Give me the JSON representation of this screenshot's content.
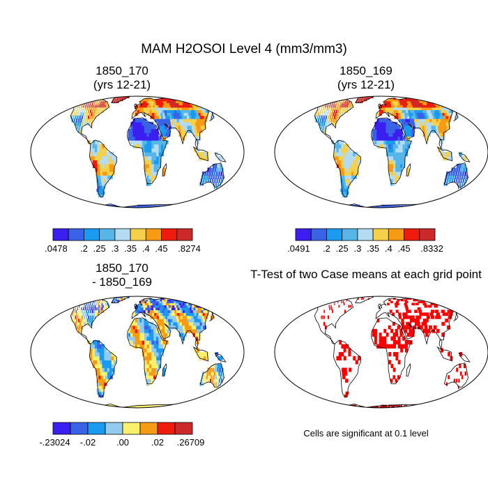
{
  "main_title": "MAM H2OSOI Level 4 (mm3/mm3)",
  "panels": [
    {
      "title_line1": "1850_170",
      "title_line2": "(yrs 12-21)",
      "colorbar": {
        "colors": [
          "#3b1ef0",
          "#3a62e6",
          "#1a9bef",
          "#57b6e8",
          "#b3dbf2",
          "#f5d04b",
          "#f79b14",
          "#ef1b0c",
          "#cc2a2a"
        ],
        "labels": [
          ".0478",
          ".2",
          ".25",
          ".3",
          ".35",
          ".4",
          ".45",
          ".8274"
        ]
      }
    },
    {
      "title_line1": "1850_169",
      "title_line2": "(yrs 12-21)",
      "colorbar": {
        "colors": [
          "#3b1ef0",
          "#3a62e6",
          "#1a9bef",
          "#57b6e8",
          "#b3dbf2",
          "#f5d04b",
          "#f79b14",
          "#ef1b0c",
          "#cc2a2a"
        ],
        "labels": [
          ".0491",
          ".2",
          ".25",
          ".3",
          ".35",
          ".4",
          ".45",
          ".8332"
        ]
      }
    },
    {
      "title_line1": "1850_170",
      "title_line2": "- 1850_169",
      "colorbar": {
        "colors": [
          "#3b1ef0",
          "#3a62e6",
          "#1a9bef",
          "#93cbf0",
          "#fbf06b",
          "#f79b14",
          "#ef1b0c",
          "#cc2a2a"
        ],
        "labels": [
          "-.23024",
          "-.02",
          ".00",
          ".02",
          ".26709"
        ]
      }
    },
    {
      "title": "T-Test of two Case means at each grid point",
      "significance_color": "#ff0000"
    }
  ],
  "note": "Cells are significant at 0.1 level"
}
